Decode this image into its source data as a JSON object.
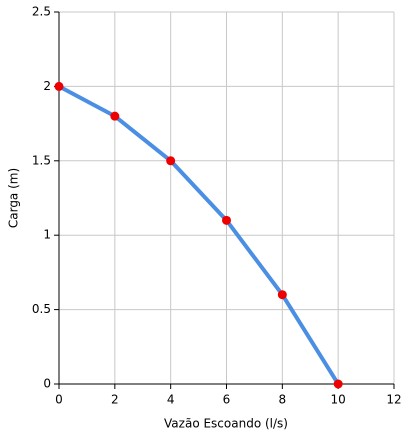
{
  "chart_data": {
    "type": "line",
    "x_label": "Vazão Escoando (l/s)",
    "y_label": "Carga (m)",
    "x": [
      0,
      2,
      4,
      6,
      8,
      10
    ],
    "values": [
      2,
      1.8,
      1.5,
      1.1,
      0.6,
      0
    ],
    "line_color": "#4a8fe3",
    "marker_color": "#ee0000",
    "xlim": [
      0,
      12
    ],
    "xticks": [
      0,
      2,
      4,
      6,
      8,
      10,
      12
    ],
    "ylim": [
      0,
      2.5
    ],
    "yticks": [
      0,
      0.5,
      1,
      1.5,
      2,
      2.5
    ],
    "grid": true
  }
}
